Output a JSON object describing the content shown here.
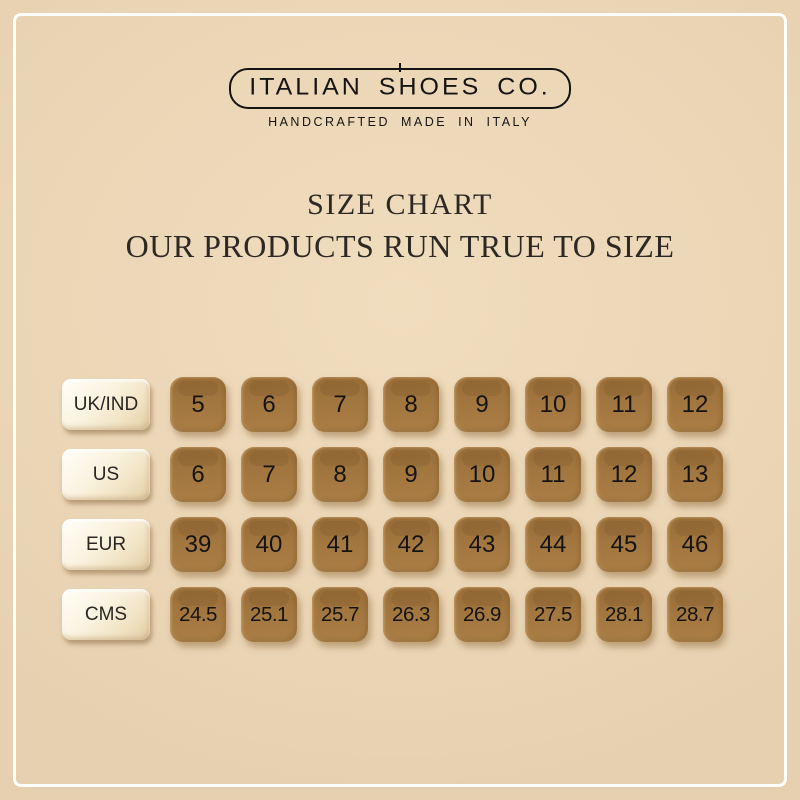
{
  "colors": {
    "background": "#ebd6b6",
    "frame_border": "#ffffff",
    "tile_brown": "#a2763f",
    "tile_text": "#161412",
    "label_cream": "#faf2de",
    "heading_text": "#2d2823",
    "logo_ink": "#161412"
  },
  "logo": {
    "brand": "ITALIAN SHOES CO.",
    "tagline": "HANDCRAFTED MADE IN ITALY"
  },
  "chart_data": {
    "type": "table",
    "title": "SIZE CHART",
    "subtitle": "OUR PRODUCTS RUN TRUE TO SIZE",
    "columns": 8,
    "rows": [
      {
        "label": "UK/IND",
        "values": [
          "5",
          "6",
          "7",
          "8",
          "9",
          "10",
          "11",
          "12"
        ]
      },
      {
        "label": "US",
        "values": [
          "6",
          "7",
          "8",
          "9",
          "10",
          "11",
          "12",
          "13"
        ]
      },
      {
        "label": "EUR",
        "values": [
          "39",
          "40",
          "41",
          "42",
          "43",
          "44",
          "45",
          "46"
        ]
      },
      {
        "label": "CMS",
        "values": [
          "24.5",
          "25.1",
          "25.7",
          "26.3",
          "26.9",
          "27.5",
          "28.1",
          "28.7"
        ]
      }
    ]
  }
}
